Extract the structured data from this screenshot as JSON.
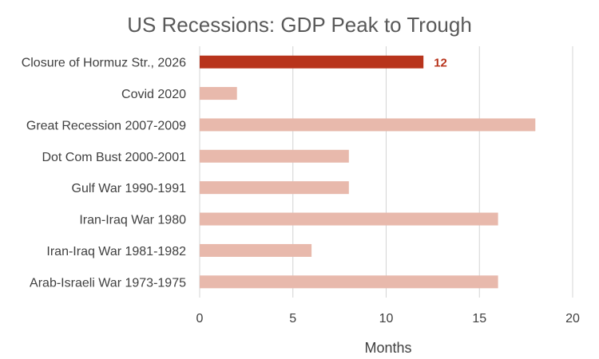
{
  "chart_data": {
    "type": "bar",
    "orientation": "horizontal",
    "title": "US Recessions: GDP Peak to Trough",
    "xlabel": "Months",
    "ylabel": "",
    "xlim": [
      0,
      20
    ],
    "xticks": [
      0,
      5,
      10,
      15,
      20
    ],
    "grid": true,
    "categories": [
      "Closure of Hormuz Str., 2026",
      "Covid 2020",
      "Great Recession 2007-2009",
      "Dot Com Bust 2000-2001",
      "Gulf War 1990-1991",
      "Iran-Iraq War 1980",
      "Iran-Iraq War 1981-1982",
      "Arab-Israeli War 1973-1975"
    ],
    "values": [
      12,
      2,
      18,
      8,
      8,
      16,
      6,
      16
    ],
    "highlight_index": 0,
    "highlight_label": "12",
    "colors": {
      "highlight": "#B8341C",
      "default": "#E8B9AC",
      "grid": "#D4D4D4",
      "label_highlight": "#B8341C"
    }
  }
}
